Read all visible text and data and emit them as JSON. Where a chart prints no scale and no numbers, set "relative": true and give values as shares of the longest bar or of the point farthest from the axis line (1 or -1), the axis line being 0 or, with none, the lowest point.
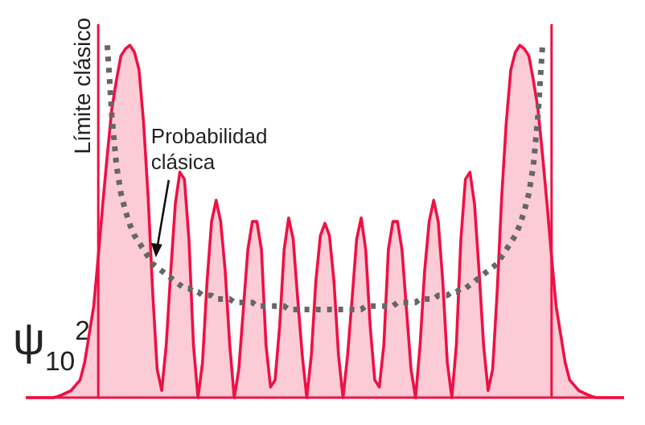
{
  "chart_data": {
    "type": "area",
    "relative": true,
    "ylabel": "ψ$_{10}$$^{2}$",
    "marker": "none",
    "categories": [
      null,
      null,
      null,
      null,
      null,
      null,
      null,
      null,
      null,
      null,
      null,
      null,
      null,
      null,
      null,
      null,
      null,
      null,
      null,
      null,
      null,
      null,
      null,
      null,
      null,
      null,
      null,
      null,
      null,
      null,
      null,
      null,
      null,
      null,
      null,
      null,
      null,
      null,
      null,
      null,
      null,
      null,
      null,
      null,
      null,
      null,
      null,
      null,
      null,
      null,
      null,
      null,
      null,
      null,
      null,
      null,
      null,
      null,
      null,
      null,
      null,
      null,
      null,
      null,
      null,
      null,
      null,
      null,
      null,
      null,
      null,
      null,
      null,
      null,
      null,
      null,
      null,
      null,
      null,
      null,
      null,
      null,
      null,
      null,
      null,
      null,
      null,
      null,
      null,
      null,
      null,
      null,
      null,
      null,
      null,
      null,
      null,
      null,
      null,
      null,
      null,
      null,
      null,
      null,
      null,
      null,
      null,
      null,
      null,
      null,
      null,
      null,
      null,
      null,
      null,
      null,
      null,
      null,
      null,
      null,
      null,
      null,
      null,
      null,
      null,
      null,
      null,
      null,
      null,
      null,
      null,
      null,
      null
    ],
    "annotations": [
      "Límite clásico",
      "Probabilidad clásica"
    ],
    "series": [
      {
        "type": "area",
        "color": "#ee1144",
        "values": [
          0,
          0,
          0,
          0,
          0,
          0,
          0,
          0.003,
          0.008,
          0.014,
          0.02,
          0.035,
          0.05,
          0.1,
          0.18,
          0.26,
          0.4,
          0.55,
          0.69,
          0.82,
          0.9,
          0.97,
          0.99,
          1,
          0.98,
          0.93,
          0.78,
          0.57,
          0.3,
          0.08,
          0.02,
          0.15,
          0.36,
          0.55,
          0.64,
          0.62,
          0.45,
          0.15,
          0,
          0.1,
          0.33,
          0.5,
          0.56,
          0.5,
          0.36,
          0.15,
          0,
          0.08,
          0.25,
          0.42,
          0.5,
          0.5,
          0.42,
          0.15,
          0.03,
          0.05,
          0.2,
          0.42,
          0.51,
          0.45,
          0.28,
          0.12,
          0,
          0.12,
          0.33,
          0.46,
          0.495,
          0.46,
          0.33,
          0.12,
          0,
          0.12,
          0.28,
          0.45,
          0.51,
          0.42,
          0.2,
          0.05,
          0.03,
          0.15,
          0.42,
          0.5,
          0.5,
          0.42,
          0.25,
          0.08,
          0,
          0.15,
          0.36,
          0.5,
          0.56,
          0.5,
          0.33,
          0.1,
          0,
          0.15,
          0.45,
          0.62,
          0.64,
          0.55,
          0.36,
          0.15,
          0.02,
          0.08,
          0.3,
          0.57,
          0.78,
          0.93,
          0.98,
          1,
          0.99,
          0.97,
          0.9,
          0.82,
          0.69,
          0.55,
          0.4,
          0.26,
          0.18,
          0.1,
          0.05,
          0.035,
          0.02,
          0.014,
          0.008,
          0.003,
          0,
          0,
          0,
          0,
          0,
          0,
          0
        ]
      },
      {
        "type": "line",
        "color": "#666666",
        "line_style": "dotted",
        "values": [
          null,
          null,
          null,
          null,
          null,
          null,
          null,
          null,
          null,
          null,
          null,
          null,
          null,
          null,
          null,
          null,
          null,
          null,
          1,
          0.8,
          0.66,
          0.58,
          0.53,
          0.49,
          0.46,
          0.44,
          0.42,
          0.4,
          0.38,
          0.37,
          0.36,
          0.35,
          0.34,
          0.33,
          0.32,
          0.31,
          0.31,
          0.3,
          0.3,
          0.29,
          0.29,
          0.29,
          0.28,
          0.28,
          0.28,
          0.28,
          0.27,
          0.27,
          0.27,
          0.27,
          0.27,
          0.26,
          0.26,
          0.26,
          0.26,
          0.26,
          0.26,
          0.26,
          0.25,
          0.25,
          0.25,
          0.25,
          0.25,
          0.25,
          0.25,
          0.25,
          0.25,
          0.25,
          0.25,
          0.25,
          0.25,
          0.25,
          0.25,
          0.25,
          0.25,
          0.26,
          0.26,
          0.26,
          0.26,
          0.26,
          0.26,
          0.26,
          0.27,
          0.27,
          0.27,
          0.27,
          0.27,
          0.28,
          0.28,
          0.28,
          0.28,
          0.29,
          0.29,
          0.29,
          0.3,
          0.3,
          0.31,
          0.31,
          0.32,
          0.33,
          0.34,
          0.35,
          0.36,
          0.37,
          0.38,
          0.4,
          0.42,
          0.44,
          0.46,
          0.49,
          0.53,
          0.58,
          0.66,
          0.8,
          1,
          null,
          null,
          null,
          null,
          null,
          null,
          null,
          null,
          null,
          null,
          null,
          null,
          null,
          null,
          null,
          null,
          null,
          null
        ]
      }
    ]
  }
}
